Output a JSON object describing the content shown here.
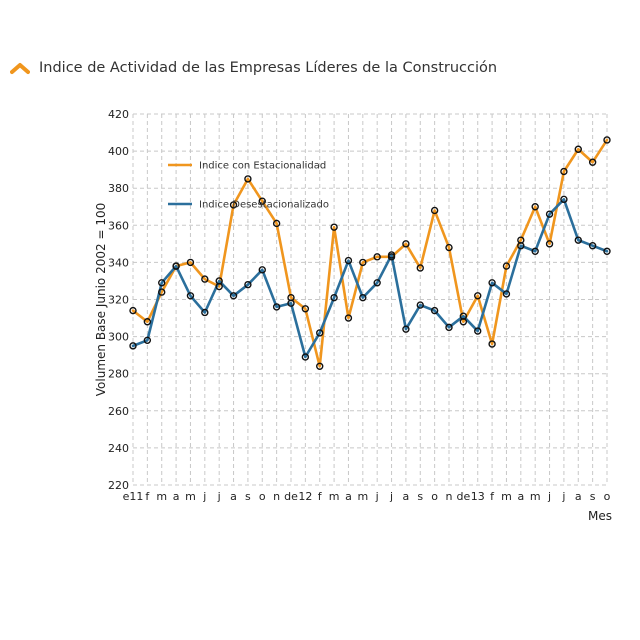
{
  "header": {
    "title": "Indice de Actividad de las Empresas Líderes de la Construcción",
    "icon": "chevron-up-icon"
  },
  "colors": {
    "orange": "#f0961e",
    "blue": "#2b6f9c",
    "marker": "#111111",
    "grid": "#c8c8c8"
  },
  "chart_data": {
    "type": "line",
    "title": "Indice de Actividad de las Empresas Líderes de la Construcción",
    "ylabel": "Volumen Base Junio 2002 = 100",
    "xlabel": "Mes",
    "ylim": [
      220,
      420
    ],
    "yticks": [
      220,
      240,
      260,
      280,
      300,
      320,
      340,
      360,
      380,
      400,
      420
    ],
    "grid": true,
    "legend_position": "top-left",
    "categories": [
      "e11",
      "f",
      "m",
      "a",
      "m",
      "j",
      "j",
      "a",
      "s",
      "o",
      "n",
      "d",
      "e12",
      "f",
      "m",
      "a",
      "m",
      "j",
      "j",
      "a",
      "s",
      "o",
      "n",
      "d",
      "e13",
      "f",
      "m",
      "a",
      "m",
      "j",
      "j",
      "a",
      "s",
      "o"
    ],
    "tick_labels": [
      "e11",
      "f",
      "m",
      "a",
      "m",
      "j",
      "j",
      "a",
      "s",
      "o",
      "n",
      "de",
      "12",
      "f",
      "m",
      "a",
      "m",
      "j",
      "j",
      "a",
      "s",
      "o",
      "n",
      "de",
      "13",
      "f",
      "m",
      "a",
      "m",
      "j",
      "j",
      "a",
      "s",
      "o"
    ],
    "series": [
      {
        "name": "Indice con Estacionalidad",
        "color": "#f0961e",
        "values": [
          314,
          308,
          324,
          338,
          340,
          331,
          327,
          371,
          385,
          373,
          361,
          321,
          315,
          284,
          359,
          310,
          340,
          343,
          343,
          350,
          337,
          368,
          348,
          308,
          322,
          296,
          338,
          352,
          370,
          350,
          389,
          401,
          394,
          406
        ]
      },
      {
        "name": "Indice Desestacionalizado",
        "color": "#2b6f9c",
        "values": [
          295,
          298,
          329,
          338,
          322,
          313,
          330,
          322,
          328,
          336,
          316,
          318,
          289,
          302,
          321,
          341,
          321,
          329,
          344,
          304,
          317,
          314,
          305,
          311,
          303,
          329,
          323,
          349,
          346,
          366,
          374,
          352,
          349,
          346
        ]
      }
    ]
  }
}
